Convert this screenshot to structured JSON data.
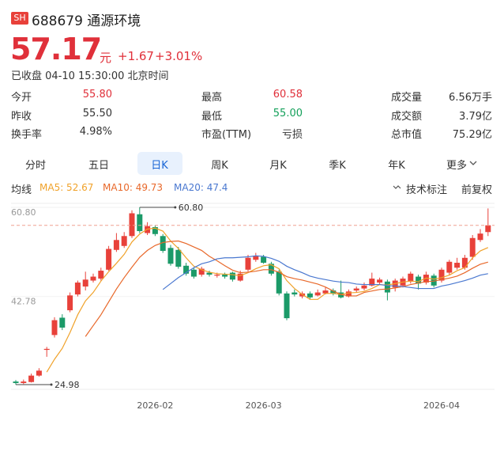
{
  "header": {
    "badge": "SH",
    "title": "688679 通源环境",
    "price": "57.17",
    "unit": "元",
    "change": "+1.67",
    "change_pct": "+3.01%",
    "status": "已收盘 04-10 15:30:00 北京时间"
  },
  "stats": {
    "rows": [
      [
        {
          "label": "今开",
          "value": "55.80",
          "color": "#e0303a"
        },
        {
          "label": "最高",
          "value": "60.58",
          "color": "#e0303a"
        },
        {
          "label": "成交量",
          "value": "6.56万手"
        }
      ],
      [
        {
          "label": "昨收",
          "value": "55.50"
        },
        {
          "label": "最低",
          "value": "55.00",
          "color": "#14a05a"
        },
        {
          "label": "成交额",
          "value": "3.79亿"
        }
      ],
      [
        {
          "label": "换手率",
          "value": "4.98%"
        },
        {
          "label": "市盈(TTM)",
          "value": "亏损"
        },
        {
          "label": "总市值",
          "value": "75.29亿"
        }
      ]
    ]
  },
  "tabs": [
    "分时",
    "五日",
    "日K",
    "周K",
    "月K",
    "季K",
    "年K",
    "更多"
  ],
  "toolbar": {
    "ma_label": "均线",
    "tech": "技术标注",
    "adjust": "前复权"
  },
  "chart_data": {
    "type": "candlestick",
    "up_color": "#e8413a",
    "down_color": "#1b9a68",
    "categories": [
      null,
      null,
      null,
      null,
      null,
      null,
      null,
      null,
      null,
      null,
      null,
      null,
      null,
      null,
      null,
      null,
      null,
      null,
      "2026-02",
      null,
      null,
      null,
      null,
      null,
      null,
      null,
      null,
      null,
      null,
      null,
      null,
      null,
      "2026-03",
      null,
      null,
      null,
      null,
      null,
      null,
      null,
      null,
      null,
      null,
      null,
      null,
      null,
      null,
      null,
      null,
      null,
      null,
      null,
      null,
      null,
      null,
      "2026-04",
      null,
      null,
      null,
      null,
      null,
      null
    ],
    "open": [
      25.6,
      25.3,
      25.5,
      26.8,
      32.0,
      35.0,
      38.5,
      40.0,
      43.2,
      44.8,
      46.0,
      46.4,
      48.2,
      52.2,
      53.0,
      55.0,
      59.4,
      55.6,
      56.8,
      55.0,
      52.6,
      52.2,
      49.0,
      48.2,
      47.2,
      47.6,
      47.0,
      47.2,
      47.6,
      46.0,
      48.2,
      50.2,
      50.8,
      49.4,
      47.8,
      43.4,
      43.6,
      42.8,
      43.4,
      43.0,
      43.4,
      44.0,
      43.6,
      42.8,
      44.0,
      44.4,
      45.0,
      45.6,
      45.8,
      44.6,
      45.0,
      45.8,
      46.8,
      45.6,
      47.0,
      46.0,
      47.6,
      48.6,
      48.6,
      50.8,
      54.2,
      55.8
    ],
    "high": [
      25.9,
      26.0,
      27.2,
      28.3,
      32.6,
      38.6,
      39.2,
      43.6,
      46.0,
      47.8,
      47.4,
      48.6,
      53.0,
      55.6,
      55.8,
      60.2,
      60.8,
      57.8,
      57.2,
      55.4,
      53.2,
      52.8,
      49.6,
      48.6,
      48.8,
      48.0,
      47.6,
      47.6,
      47.8,
      48.0,
      51.2,
      51.6,
      51.2,
      49.8,
      48.2,
      43.8,
      44.2,
      43.8,
      43.8,
      44.2,
      44.6,
      44.4,
      46.0,
      44.2,
      44.8,
      45.6,
      47.6,
      46.6,
      46.2,
      46.4,
      46.8,
      47.8,
      47.2,
      47.8,
      47.4,
      48.6,
      50.2,
      50.6,
      51.2,
      55.2,
      56.4,
      60.58
    ],
    "low": [
      24.98,
      25.1,
      25.4,
      26.6,
      30.6,
      34.5,
      36.0,
      39.6,
      42.8,
      44.0,
      45.6,
      46.0,
      48.0,
      51.8,
      52.6,
      54.6,
      55.6,
      55.2,
      55.0,
      51.6,
      49.0,
      48.4,
      47.0,
      46.4,
      46.8,
      46.8,
      46.6,
      46.4,
      45.8,
      45.8,
      47.8,
      49.8,
      49.4,
      47.0,
      43.0,
      38.0,
      42.8,
      42.4,
      42.2,
      42.8,
      43.2,
      43.0,
      42.4,
      42.6,
      43.6,
      44.0,
      44.8,
      45.2,
      42.0,
      43.8,
      44.6,
      45.4,
      44.2,
      45.2,
      44.6,
      45.6,
      47.2,
      48.2,
      48.2,
      50.2,
      53.8,
      55.0
    ],
    "close": [
      25.3,
      25.6,
      26.8,
      27.8,
      32.2,
      38.0,
      36.5,
      43.0,
      45.6,
      46.2,
      46.8,
      48.0,
      52.4,
      54.2,
      55.0,
      59.6,
      56.0,
      57.0,
      55.4,
      52.0,
      49.4,
      48.8,
      47.4,
      46.8,
      48.4,
      47.2,
      47.2,
      46.8,
      46.2,
      47.4,
      50.6,
      51.0,
      49.6,
      47.4,
      43.4,
      38.4,
      43.2,
      43.4,
      42.6,
      43.6,
      44.0,
      43.4,
      42.6,
      43.8,
      44.4,
      45.0,
      46.4,
      46.2,
      43.6,
      46.0,
      46.4,
      47.4,
      45.4,
      47.2,
      45.0,
      48.2,
      49.8,
      49.6,
      50.6,
      54.6,
      55.5,
      57.17
    ],
    "series": [
      {
        "name": "MA5: 52.67",
        "color": "#f0a22a",
        "values": [
          null,
          null,
          null,
          null,
          27.5,
          30.1,
          32.3,
          35.5,
          39.1,
          41.9,
          43.6,
          45.9,
          47.8,
          49.5,
          51.3,
          53.8,
          55.4,
          56.4,
          56.6,
          56.0,
          54.0,
          52.5,
          50.6,
          48.9,
          48.2,
          47.7,
          47.4,
          47.3,
          47.2,
          47.0,
          47.6,
          48.4,
          49.0,
          49.2,
          48.4,
          46.0,
          44.4,
          43.2,
          42.2,
          42.2,
          43.4,
          43.4,
          43.2,
          43.5,
          43.6,
          43.8,
          44.4,
          45.2,
          45.1,
          45.4,
          45.7,
          45.9,
          45.8,
          46.5,
          46.3,
          46.6,
          47.1,
          48.0,
          48.6,
          50.6,
          52.0,
          52.67
        ]
      },
      {
        "name": "MA10: 49.73",
        "color": "#e8682a",
        "values": [
          null,
          null,
          null,
          null,
          null,
          null,
          null,
          null,
          null,
          34.7,
          36.9,
          39.1,
          41.7,
          44.3,
          46.6,
          48.7,
          50.7,
          52.1,
          53.1,
          53.7,
          53.9,
          54.0,
          53.5,
          52.8,
          52.1,
          50.9,
          50.0,
          49.0,
          48.1,
          47.6,
          47.7,
          47.9,
          48.2,
          48.2,
          47.7,
          46.8,
          46.4,
          46.1,
          45.7,
          45.3,
          44.7,
          43.9,
          43.2,
          42.9,
          42.9,
          43.6,
          43.9,
          44.2,
          44.3,
          44.5,
          44.8,
          45.2,
          45.5,
          45.8,
          45.9,
          46.2,
          46.5,
          46.9,
          47.6,
          48.5,
          49.3,
          49.73
        ]
      },
      {
        "name": "MA20: 47.4",
        "color": "#4a78d0",
        "values": [
          null,
          null,
          null,
          null,
          null,
          null,
          null,
          null,
          null,
          null,
          null,
          null,
          null,
          null,
          null,
          null,
          null,
          null,
          null,
          44.2,
          45.4,
          46.6,
          47.6,
          48.6,
          49.4,
          49.8,
          50.4,
          50.6,
          50.6,
          50.7,
          50.8,
          51.0,
          50.9,
          50.5,
          49.9,
          48.9,
          48.2,
          47.6,
          46.9,
          46.5,
          46.2,
          45.9,
          45.7,
          45.6,
          45.3,
          45.2,
          45.2,
          45.2,
          45.0,
          44.9,
          44.8,
          44.6,
          44.4,
          44.4,
          44.4,
          44.9,
          45.2,
          45.6,
          46.0,
          46.5,
          47.1,
          47.4
        ]
      }
    ],
    "ylim": [
      24.98,
      60.8
    ],
    "yticks": [
      {
        "value": 60.8,
        "label": "60.80"
      },
      {
        "value": 42.78,
        "label": "42.78"
      }
    ],
    "annotations": [
      {
        "value": 60.8,
        "label": "60.80"
      },
      {
        "value": 24.98,
        "label": "24.98"
      }
    ]
  }
}
